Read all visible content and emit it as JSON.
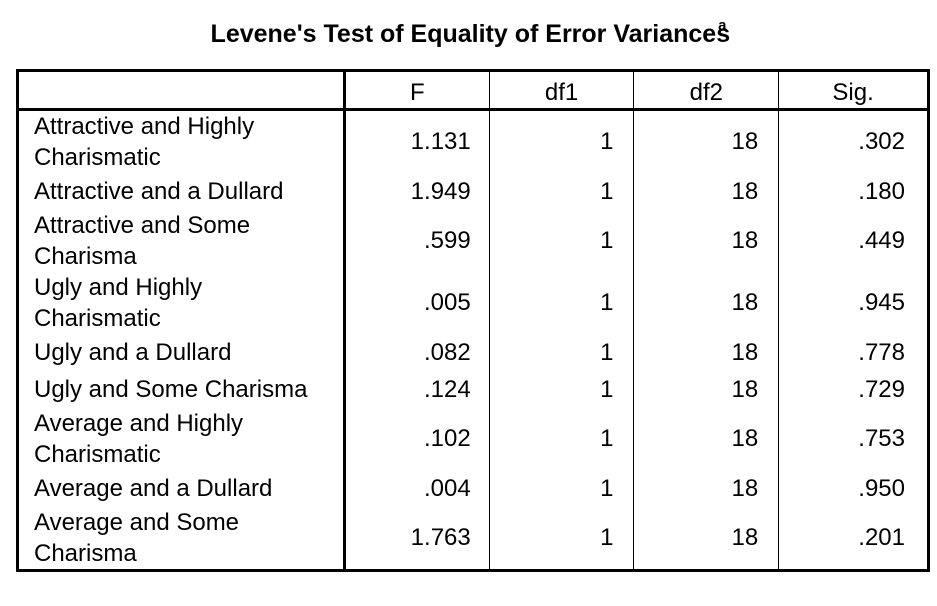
{
  "title": "Levene's Test of Equality of Error Variances",
  "title_superscript": "a",
  "columns": [
    "F",
    "df1",
    "df2",
    "Sig."
  ],
  "rows": [
    {
      "label": "Attractive and Highly Charismatic",
      "F": "1.131",
      "df1": "1",
      "df2": "18",
      "sig": ".302"
    },
    {
      "label": "Attractive and a Dullard",
      "F": "1.949",
      "df1": "1",
      "df2": "18",
      "sig": ".180"
    },
    {
      "label": "Attractive and Some Charisma",
      "F": ".599",
      "df1": "1",
      "df2": "18",
      "sig": ".449"
    },
    {
      "label": "Ugly and Highly Charismatic",
      "F": ".005",
      "df1": "1",
      "df2": "18",
      "sig": ".945"
    },
    {
      "label": "Ugly and a Dullard",
      "F": ".082",
      "df1": "1",
      "df2": "18",
      "sig": ".778"
    },
    {
      "label": "Ugly and Some Charisma",
      "F": ".124",
      "df1": "1",
      "df2": "18",
      "sig": ".729"
    },
    {
      "label": "Average and Highly Charismatic",
      "F": ".102",
      "df1": "1",
      "df2": "18",
      "sig": ".753"
    },
    {
      "label": "Average and a Dullard",
      "F": ".004",
      "df1": "1",
      "df2": "18",
      "sig": ".950"
    },
    {
      "label": "Average and Some Charisma",
      "F": "1.763",
      "df1": "1",
      "df2": "18",
      "sig": ".201"
    }
  ]
}
